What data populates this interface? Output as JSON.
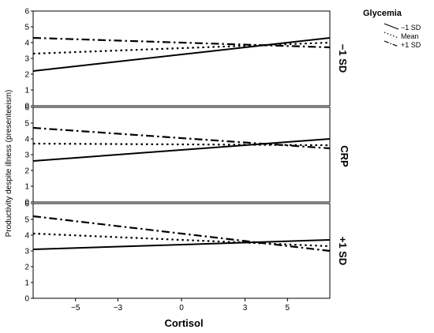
{
  "chart_data": {
    "type": "line",
    "xlabel": "Cortisol",
    "ylabel": "Productivity despite illness (presenteeism)",
    "xlim": [
      -7,
      7
    ],
    "ylim": [
      0,
      6
    ],
    "x_ticks": [
      "−5",
      "−3",
      "0",
      "3",
      "5"
    ],
    "x_tick_values": [
      -5,
      -3,
      0,
      3,
      5
    ],
    "y_ticks": [
      "0",
      "1",
      "2",
      "3",
      "4",
      "5",
      "6"
    ],
    "y_tick_values": [
      0,
      1,
      2,
      3,
      4,
      5,
      6
    ],
    "legend": {
      "title": "Glycemia",
      "placement": "top-right",
      "entries": [
        {
          "label": "−1 SD",
          "style": "solid"
        },
        {
          "label": "Mean",
          "style": "dotted"
        },
        {
          "label": "+1 SD",
          "style": "dashdot"
        }
      ]
    },
    "facet_title": "CRP",
    "panels": [
      {
        "label": "−1 SD",
        "series": [
          {
            "style": "solid",
            "x": [
              -7,
              7
            ],
            "y": [
              2.2,
              4.3
            ]
          },
          {
            "style": "dotted",
            "x": [
              -7,
              7
            ],
            "y": [
              3.3,
              4.0
            ]
          },
          {
            "style": "dashdot",
            "x": [
              -7,
              7
            ],
            "y": [
              4.3,
              3.7
            ]
          }
        ]
      },
      {
        "label": "",
        "series": [
          {
            "style": "solid",
            "x": [
              -7,
              7
            ],
            "y": [
              2.6,
              4.0
            ]
          },
          {
            "style": "dotted",
            "x": [
              -7,
              7
            ],
            "y": [
              3.7,
              3.6
            ]
          },
          {
            "style": "dashdot",
            "x": [
              -7,
              7
            ],
            "y": [
              4.7,
              3.4
            ]
          }
        ]
      },
      {
        "label": "+1 SD",
        "series": [
          {
            "style": "solid",
            "x": [
              -7,
              7
            ],
            "y": [
              3.1,
              3.7
            ]
          },
          {
            "style": "dotted",
            "x": [
              -7,
              7
            ],
            "y": [
              4.1,
              3.3
            ]
          },
          {
            "style": "dashdot",
            "x": [
              -7,
              7
            ],
            "y": [
              5.2,
              3.0
            ]
          }
        ]
      }
    ]
  }
}
